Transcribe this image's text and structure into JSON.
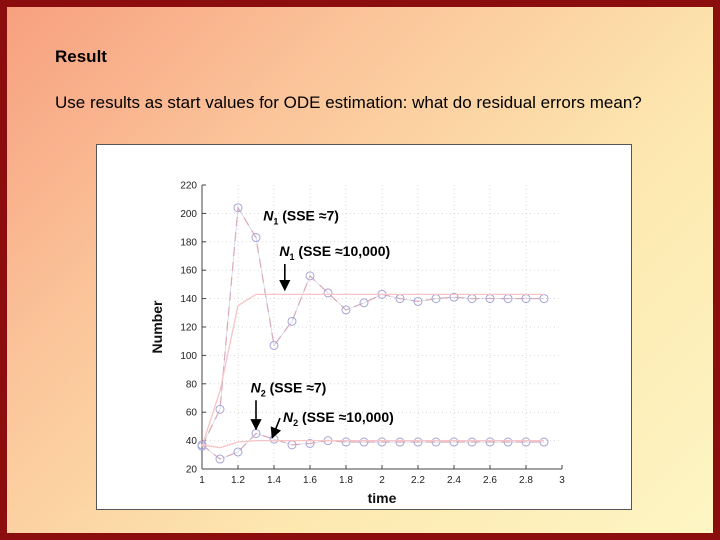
{
  "slide": {
    "title": "Result",
    "subtitle": "Use results as start values for ODE estimation: what do residual errors mean?"
  },
  "colors": {
    "border": "#8b0d0d",
    "marker": "#a5a5d8",
    "dash_curve": "#f2b2b2",
    "fit_curve": "#f6c4c4",
    "arrow": "#000000"
  },
  "chart_data": {
    "type": "line",
    "xlabel": "time",
    "ylabel": "Number",
    "xlim": [
      1,
      3
    ],
    "ylim": [
      20,
      220
    ],
    "x_ticks": [
      "1",
      "1.2",
      "1.4",
      "1.6",
      "1.8",
      "2",
      "2.2",
      "2.4",
      "2.6",
      "2.8",
      "3"
    ],
    "y_ticks": [
      "20",
      "40",
      "60",
      "80",
      "100",
      "120",
      "140",
      "160",
      "180",
      "200",
      "220"
    ],
    "grid": true,
    "series": [
      {
        "name": "N1 (SSE ≈7)",
        "style": "dashed-markers",
        "x": [
          1.0,
          1.1,
          1.2,
          1.3,
          1.4,
          1.5,
          1.6,
          1.7,
          1.8,
          1.9,
          2.0,
          2.1,
          2.2,
          2.3,
          2.4,
          2.5,
          2.6,
          2.7,
          2.8,
          2.9
        ],
        "y": [
          36,
          62,
          204,
          183,
          107,
          124,
          156,
          144,
          132,
          137,
          143,
          140,
          138,
          140,
          141,
          140,
          140,
          140,
          140,
          140
        ]
      },
      {
        "name": "N1 (SSE ≈10,000)",
        "style": "solid",
        "x": [
          1.0,
          1.1,
          1.2,
          1.3,
          1.4,
          1.6,
          1.8,
          2.0,
          2.2,
          2.4,
          2.6,
          2.8,
          2.9
        ],
        "y": [
          36,
          75,
          135,
          143,
          143,
          143,
          143,
          143,
          143,
          143,
          143,
          143,
          143
        ]
      },
      {
        "name": "N2 (SSE ≈7)",
        "style": "dashed-markers",
        "x": [
          1.0,
          1.1,
          1.2,
          1.3,
          1.4,
          1.5,
          1.6,
          1.7,
          1.8,
          1.9,
          2.0,
          2.1,
          2.2,
          2.3,
          2.4,
          2.5,
          2.6,
          2.7,
          2.8,
          2.9
        ],
        "y": [
          37,
          27,
          32,
          45,
          41,
          37,
          38,
          40,
          39,
          39,
          39,
          39,
          39,
          39,
          39,
          39,
          39,
          39,
          39,
          39
        ]
      },
      {
        "name": "N2 (SSE ≈10,000)",
        "style": "solid",
        "x": [
          1.0,
          1.1,
          1.2,
          1.3,
          1.4,
          1.6,
          1.8,
          2.0,
          2.2,
          2.4,
          2.6,
          2.8,
          2.9
        ],
        "y": [
          37,
          35,
          39,
          40,
          40,
          40,
          40,
          40,
          40,
          40,
          40,
          40,
          40
        ]
      }
    ],
    "annotations": [
      {
        "var": "N",
        "sub": "1",
        "rest": " (SSE ≈7)",
        "data_x": 1.34,
        "data_y": 195,
        "arrow": false
      },
      {
        "var": "N",
        "sub": "1",
        "rest": " (SSE ≈10,000)",
        "data_x": 1.43,
        "data_y": 170,
        "arrow": true,
        "arrow_to": [
          1.46,
          146
        ]
      },
      {
        "var": "N",
        "sub": "2",
        "rest": " (SSE ≈7)",
        "data_x": 1.27,
        "data_y": 74,
        "arrow": true,
        "arrow_to": [
          1.3,
          48
        ]
      },
      {
        "var": "N",
        "sub": "2",
        "rest": " (SSE ≈10,000)",
        "data_x": 1.45,
        "data_y": 53,
        "arrow": true,
        "arrow_to": [
          1.39,
          42
        ]
      }
    ]
  }
}
